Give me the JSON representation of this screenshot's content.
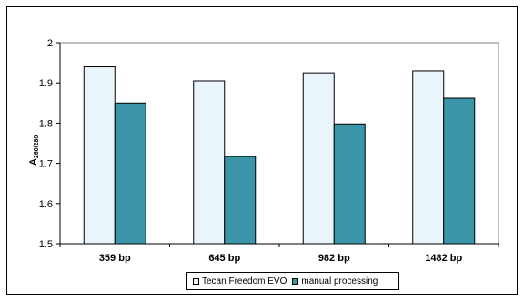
{
  "chart_data": {
    "type": "bar",
    "categories": [
      "359 bp",
      "645 bp",
      "982 bp",
      "1482 bp"
    ],
    "series": [
      {
        "name": "Tecan Freedom EVO",
        "values": [
          1.94,
          1.905,
          1.925,
          1.93
        ],
        "color": "#EAF4FB"
      },
      {
        "name": "manual processing",
        "values": [
          1.85,
          1.717,
          1.798,
          1.862
        ],
        "color": "#3A95A8"
      }
    ],
    "ylabel_main": "A",
    "ylabel_sub": "260/280",
    "ylim": [
      1.5,
      2.0
    ],
    "yticks": [
      "1.5",
      "1.6",
      "1.7",
      "1.8",
      "1.9",
      "2"
    ],
    "ytick_values": [
      1.5,
      1.6,
      1.7,
      1.8,
      1.9,
      2.0
    ],
    "grid": false,
    "legend_placement": "bottom"
  }
}
